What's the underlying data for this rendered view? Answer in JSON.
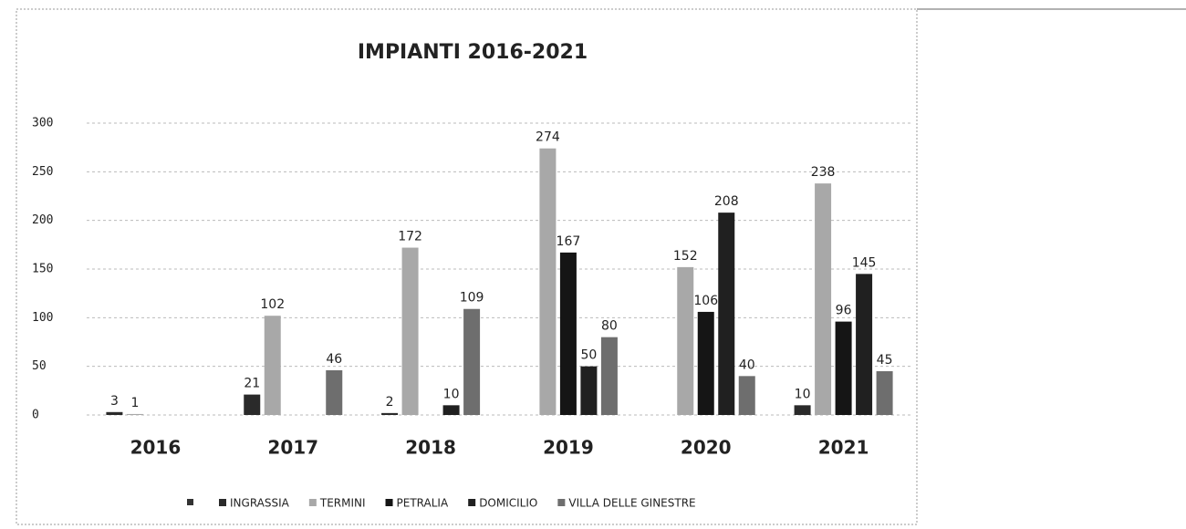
{
  "chart_data": {
    "type": "bar",
    "title": "IMPIANTI 2016-2021",
    "categories": [
      "2016",
      "2017",
      "2018",
      "2019",
      "2020",
      "2021"
    ],
    "series": [
      {
        "name": "INGRASSIA",
        "color": "#2a2a2a",
        "values": [
          3,
          21,
          2,
          null,
          null,
          10
        ]
      },
      {
        "name": "TERMINI",
        "color": "#a8a8a8",
        "values": [
          1,
          102,
          172,
          274,
          152,
          238
        ]
      },
      {
        "name": "PETRALIA",
        "color": "#151515",
        "values": [
          null,
          null,
          null,
          167,
          106,
          96
        ]
      },
      {
        "name": "DOMICILIO",
        "color": "#202020",
        "values": [
          null,
          null,
          10,
          50,
          208,
          145
        ]
      },
      {
        "name": "VILLA DELLE GINESTRE",
        "color": "#6e6e6e",
        "values": [
          null,
          46,
          109,
          80,
          40,
          45
        ]
      }
    ],
    "ylim": [
      0,
      300
    ],
    "yticks": [
      0,
      50,
      100,
      150,
      200,
      250,
      300
    ],
    "grid": true,
    "legend": "bottom"
  }
}
